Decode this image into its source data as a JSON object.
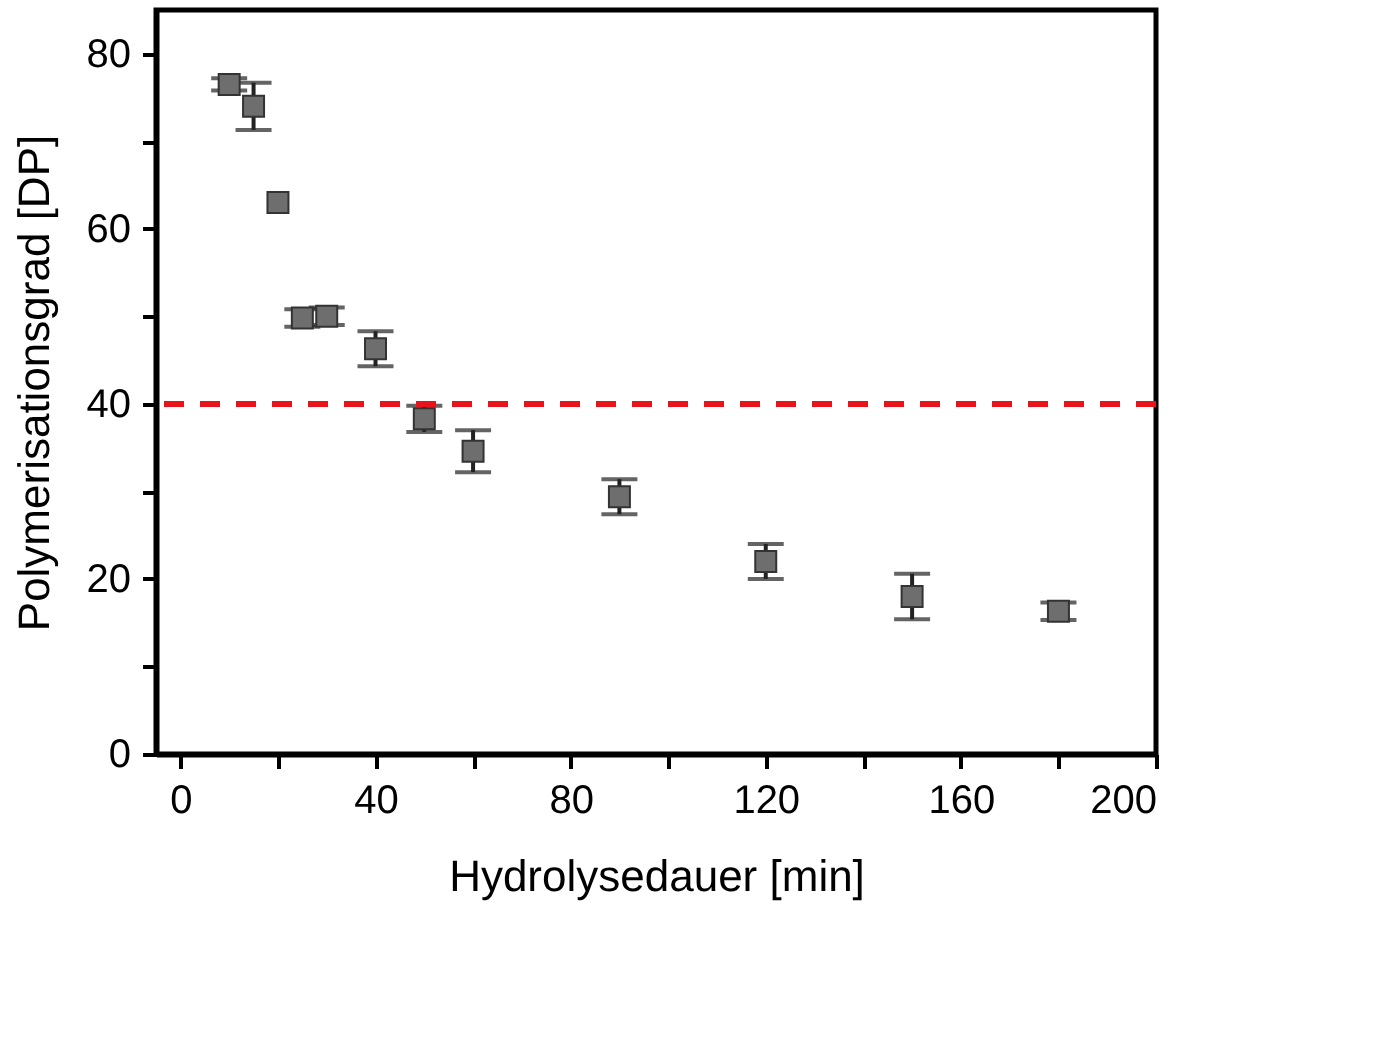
{
  "chart_data": {
    "type": "scatter",
    "xlabel": "Hydrolysedauer   [min]",
    "ylabel": "Polymerisationsgrad   [DP]",
    "x": [
      10,
      15,
      20,
      25,
      30,
      40,
      50,
      60,
      90,
      120,
      150,
      180
    ],
    "series": [
      {
        "color": "#6e6e6e",
        "values": [
          76.5,
          74,
          63,
          49.8,
          50,
          46.3,
          38.3,
          34.6,
          29.4,
          22,
          18,
          16.3
        ],
        "errors": [
          0.7,
          2.7,
          null,
          1,
          1,
          2,
          1.5,
          2.4,
          2,
          2,
          2.6,
          1
        ]
      }
    ],
    "marker": "square",
    "xlim": [
      -5,
      200
    ],
    "ylim": [
      0,
      85
    ],
    "xticks": [
      0,
      {
        "value": 20,
        "label": null
      },
      40,
      {
        "value": 60,
        "label": null
      },
      80,
      {
        "value": 100,
        "label": null
      },
      120,
      {
        "value": 140,
        "label": null
      },
      160,
      {
        "value": 180,
        "label": null
      },
      200
    ],
    "yticks": [
      0,
      {
        "value": 10,
        "label": null
      },
      20,
      {
        "value": 30,
        "label": null
      },
      40,
      {
        "value": 50,
        "label": null
      },
      60,
      {
        "value": 70,
        "label": null
      },
      80
    ],
    "ref_lines": [
      {
        "axis": "y",
        "value": 40,
        "color": "#e8131b",
        "line_style": "dashed"
      }
    ],
    "grid": false
  }
}
